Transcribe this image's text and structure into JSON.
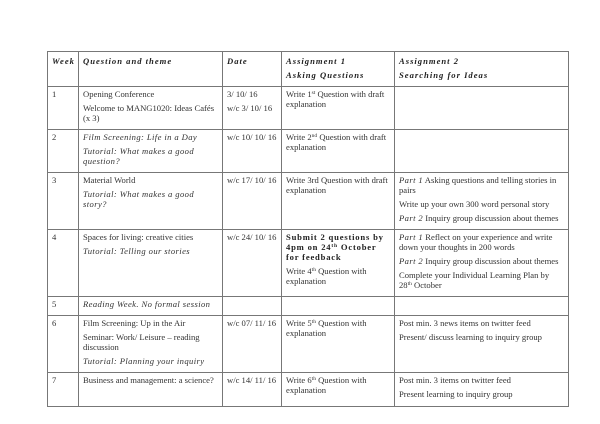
{
  "header": {
    "week": "Week",
    "theme": "Question and theme",
    "date": "Date",
    "a1": [
      "Assignment 1",
      "Asking Questions"
    ],
    "a2": [
      "Assignment 2",
      "Searching for Ideas"
    ]
  },
  "rows": [
    {
      "week": "1",
      "theme": [
        [
          {
            "t": "Opening Conference"
          }
        ],
        [
          {
            "t": "Welcome to MANG1020: Ideas Cafés (x 3)"
          }
        ]
      ],
      "date": [
        [
          {
            "t": "3/ 10/ 16"
          }
        ],
        [
          {
            "t": "w/c  3/ 10/ 16"
          }
        ]
      ],
      "a1": [
        [
          {
            "t": "Write 1"
          },
          {
            "t": "st",
            "sup": true
          },
          {
            "t": " Question with  draft explanation"
          }
        ]
      ],
      "a2": []
    },
    {
      "week": "2",
      "theme": [
        [
          {
            "t": "Film Screening: Life in a Day",
            "i": true
          }
        ],
        [
          {
            "t": "Tutorial: What makes a good question?",
            "i": true
          }
        ]
      ],
      "date": [
        [
          {
            "t": "w/c  10/ 10/ 16"
          }
        ]
      ],
      "a1": [
        [
          {
            "t": "Write 2"
          },
          {
            "t": "nd",
            "sup": true
          },
          {
            "t": " Question with draft explanation"
          }
        ]
      ],
      "a2": []
    },
    {
      "week": "3",
      "theme": [
        [
          {
            "t": "Material World"
          }
        ],
        [
          {
            "t": "Tutorial: What makes a good story?",
            "i": true
          }
        ]
      ],
      "date": [
        [
          {
            "t": "w/c  17/ 10/ 16"
          }
        ]
      ],
      "a1": [
        [
          {
            "t": "Write 3rd Question with draft explanation"
          }
        ]
      ],
      "a2": [
        [
          {
            "t": "Part 1",
            "i": true
          },
          {
            "t": " Asking questions and telling stories in pairs"
          }
        ],
        [
          {
            "t": "Write up your own 300 word personal story"
          }
        ],
        [
          {
            "t": "Part 2",
            "i": true
          },
          {
            "t": " Inquiry group discussion about themes"
          }
        ]
      ]
    },
    {
      "week": "4",
      "theme": [
        [
          {
            "t": "Spaces for living: creative cities"
          }
        ],
        [
          {
            "t": "Tutorial: Telling our stories",
            "i": true
          }
        ]
      ],
      "date": [
        [
          {
            "t": "w/c  24/ 10/ 16"
          }
        ]
      ],
      "a1": [
        [
          {
            "t": "Submit 2 questions by 4pm on 24",
            "b": true
          },
          {
            "t": "th",
            "sup": true,
            "b": true
          },
          {
            "t": " October for feedback",
            "b": true
          }
        ],
        [
          {
            "t": "Write 4"
          },
          {
            "t": "th",
            "sup": true
          },
          {
            "t": " Question with explanation"
          }
        ]
      ],
      "a2": [
        [
          {
            "t": "Part 1",
            "i": true
          },
          {
            "t": " Reflect on your experience and write down your thoughts in 200 words"
          }
        ],
        [
          {
            "t": "Part 2",
            "i": true
          },
          {
            "t": " Inquiry group discussion about themes"
          }
        ],
        [
          {
            "t": "Complete your Individual Learning Plan by 28"
          },
          {
            "t": "th",
            "sup": true
          },
          {
            "t": " October"
          }
        ]
      ]
    },
    {
      "week": "5",
      "theme": [
        [
          {
            "t": "Reading Week. No formal session",
            "i": true
          }
        ]
      ],
      "date": [],
      "a1": [],
      "a2": []
    },
    {
      "week": "6",
      "theme": [
        [
          {
            "t": "Film Screening: Up in the Air"
          }
        ],
        [
          {
            "t": "Seminar: Work/ Leisure – reading discussion"
          }
        ],
        [
          {
            "t": "Tutorial: Planning your inquiry",
            "i": true
          }
        ]
      ],
      "date": [
        [
          {
            "t": "w/c  07/ 11/ 16"
          }
        ]
      ],
      "a1": [
        [
          {
            "t": "Write 5"
          },
          {
            "t": "th",
            "sup": true
          },
          {
            "t": " Question with explanation"
          }
        ]
      ],
      "a2": [
        [
          {
            "t": "Post  min. 3 news items on twitter feed"
          }
        ],
        [
          {
            "t": "Present/ discuss learning to inquiry group"
          }
        ]
      ]
    },
    {
      "week": "7",
      "theme": [
        [
          {
            "t": "Business and management: a science?"
          }
        ]
      ],
      "date": [
        [
          {
            "t": "w/c  14/ 11/ 16"
          }
        ]
      ],
      "a1": [
        [
          {
            "t": "Write 6"
          },
          {
            "t": "th",
            "sup": true
          },
          {
            "t": " Question with explanation"
          }
        ]
      ],
      "a2": [
        [
          {
            "t": "Post min. 3 items on twitter feed"
          }
        ],
        [
          {
            "t": "Present learning to inquiry group"
          }
        ]
      ]
    }
  ]
}
